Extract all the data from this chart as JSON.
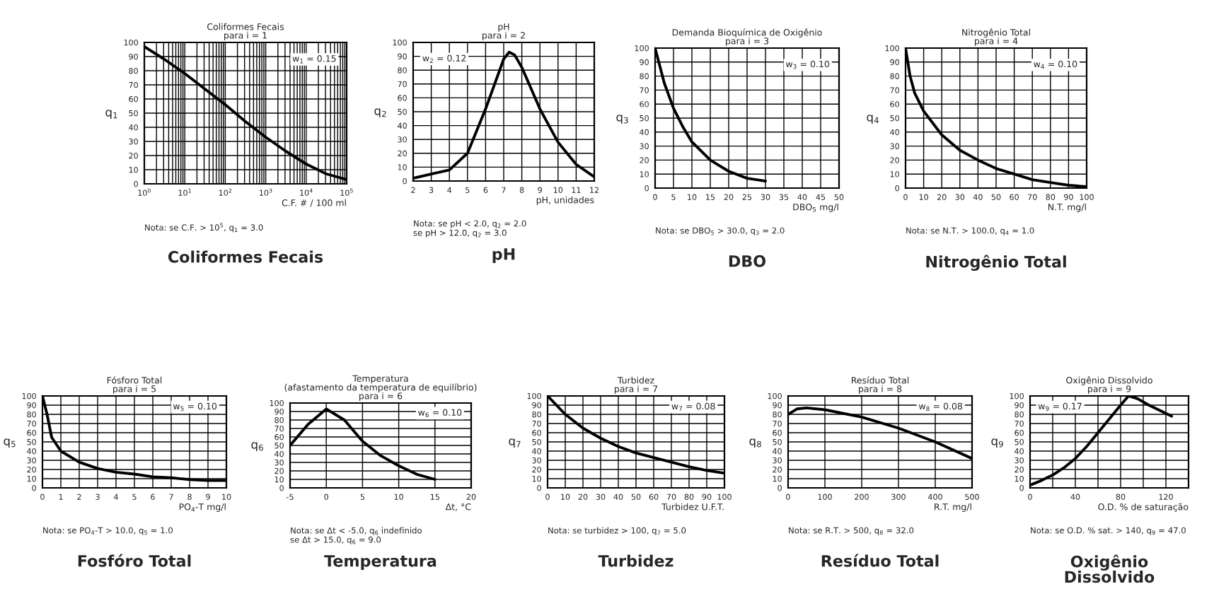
{
  "chart_data": [
    {
      "type": "line",
      "title": "Coliformes Fecais",
      "subtitle": "para i = 1",
      "xlabel": "C.F. # / 100 ml",
      "ylabel": "q$_{1}$",
      "log": "x",
      "xlim": [
        1,
        100000
      ],
      "xticks": [
        {
          "value": 1,
          "label": "10$^{0}$"
        },
        {
          "value": 10,
          "label": "10$^{1}$"
        },
        {
          "value": 100,
          "label": "10$^{2}$"
        },
        {
          "value": 1000,
          "label": "10$^{3}$"
        },
        {
          "value": 10000,
          "label": "10$^{4}$"
        },
        {
          "value": 100000,
          "label": "10$^{5}$"
        }
      ],
      "ylim": [
        0,
        100
      ],
      "yticks": [
        0,
        10,
        20,
        30,
        40,
        50,
        60,
        70,
        80,
        90,
        100
      ],
      "grid": true,
      "series": [
        {
          "color": "#000000",
          "x": [
            1,
            3.16,
            10,
            31.6,
            100,
            316,
            1000,
            3162,
            10000,
            31623,
            100000
          ],
          "values": [
            97,
            88,
            78,
            67,
            56,
            44,
            33,
            23,
            14,
            7,
            3
          ]
        }
      ],
      "annotations": [
        "w$_{1}$ = 0.15",
        "Nota: se C.F. > 10$^{5}$, q$_{1}$ = 3.0",
        "Coliformes Fecais"
      ]
    },
    {
      "type": "line",
      "title": "pH",
      "subtitle": "para i = 2",
      "xlabel": "pH, unidades",
      "ylabel": "q$_{2}$",
      "xlim": [
        2,
        12
      ],
      "xticks": [
        2,
        3,
        4,
        5,
        6,
        7,
        8,
        9,
        10,
        11,
        12
      ],
      "ylim": [
        0,
        100
      ],
      "yticks": [
        0,
        10,
        20,
        30,
        40,
        50,
        60,
        70,
        80,
        90,
        100
      ],
      "grid": true,
      "series": [
        {
          "color": "#000000",
          "x": [
            2,
            3,
            4,
            5,
            6,
            7,
            7.3,
            7.6,
            8,
            9,
            10,
            11,
            12
          ],
          "values": [
            2,
            5,
            8,
            20,
            52,
            88,
            93,
            91,
            82,
            52,
            28,
            12,
            3
          ]
        }
      ],
      "annotations": [
        "w$_{2}$ = 0.12",
        "Nota: se pH < 2.0, q$_{2}$ = 2.0\nse pH > 12.0, q$_{2}$ = 3.0",
        "pH"
      ]
    },
    {
      "type": "line",
      "title": "Demanda Bioquímica de Oxigênio",
      "subtitle": "para i = 3",
      "xlabel": "DBO$_{5}$ mg/l",
      "ylabel": "q$_{3}$",
      "xlim": [
        0,
        50
      ],
      "xticks": [
        0,
        5,
        10,
        15,
        20,
        25,
        30,
        35,
        40,
        45,
        50
      ],
      "ylim": [
        0,
        100
      ],
      "yticks": [
        0,
        10,
        20,
        30,
        40,
        50,
        60,
        70,
        80,
        90,
        100
      ],
      "grid": true,
      "series": [
        {
          "color": "#000000",
          "x": [
            0,
            2.5,
            5,
            7.5,
            10,
            15,
            20,
            25,
            30
          ],
          "values": [
            100,
            75,
            57,
            44,
            33,
            20,
            12,
            7,
            5
          ]
        }
      ],
      "annotations": [
        "w$_{3}$ = 0.10",
        "Nota: se DBO$_{5}$ > 30.0, q$_{3}$ = 2.0",
        "DBO"
      ]
    },
    {
      "type": "line",
      "title": "Nitrogênio Total",
      "subtitle": "para i = 4",
      "xlabel": "N.T. mg/l",
      "ylabel": "q$_{4}$",
      "xlim": [
        0,
        100
      ],
      "xticks": [
        0,
        10,
        20,
        30,
        40,
        50,
        60,
        70,
        80,
        90,
        100
      ],
      "ylim": [
        0,
        100
      ],
      "yticks": [
        0,
        10,
        20,
        30,
        40,
        50,
        60,
        70,
        80,
        90,
        100
      ],
      "grid": true,
      "series": [
        {
          "color": "#000000",
          "x": [
            0,
            2.5,
            5,
            10,
            20,
            30,
            40,
            50,
            60,
            70,
            80,
            90,
            100
          ],
          "values": [
            100,
            80,
            68,
            55,
            38,
            27,
            20,
            14,
            10,
            6,
            4,
            2,
            1
          ]
        }
      ],
      "annotations": [
        "w$_{4}$ = 0.10",
        "Nota: se N.T. > 100.0, q$_{4}$ = 1.0",
        "Nitrogênio Total"
      ]
    },
    {
      "type": "line",
      "title": "Fósforo Total",
      "subtitle": "para i = 5",
      "xlabel": "PO$_{4}$-T mg/l",
      "ylabel": "q$_{5}$",
      "xlim": [
        0,
        10
      ],
      "xticks": [
        0,
        1,
        2,
        3,
        4,
        5,
        6,
        7,
        8,
        9,
        10
      ],
      "ylim": [
        0,
        100
      ],
      "yticks": [
        0,
        10,
        20,
        30,
        40,
        50,
        60,
        70,
        80,
        90,
        100
      ],
      "grid": true,
      "series": [
        {
          "color": "#000000",
          "x": [
            0,
            0.25,
            0.5,
            1,
            2,
            3,
            4,
            5,
            6,
            7,
            8,
            9,
            10
          ],
          "values": [
            100,
            80,
            55,
            40,
            28,
            21,
            17,
            15,
            12,
            11,
            9,
            8,
            8
          ]
        }
      ],
      "annotations": [
        "w$_{5}$ = 0.10",
        "Nota: se PO$_{4}$-T > 10.0, q$_{5}$ = 1.0",
        "Fosfóro Total"
      ]
    },
    {
      "type": "line",
      "title": "Temperatura",
      "subtitle": "(afastamento da temperatura de equilíbrio)\npara i = 6",
      "xlabel": "Δt, °C",
      "ylabel": "q$_{6}$",
      "xlim": [
        -5,
        20
      ],
      "xticks": [
        -5,
        0,
        5,
        10,
        15,
        20
      ],
      "ylim": [
        0,
        100
      ],
      "yticks": [
        0,
        10,
        20,
        30,
        40,
        50,
        60,
        70,
        80,
        90,
        100
      ],
      "grid": true,
      "series": [
        {
          "color": "#000000",
          "x": [
            -5,
            -2.5,
            0,
            2.5,
            5,
            7.5,
            10,
            12.5,
            15
          ],
          "values": [
            50,
            75,
            93,
            80,
            55,
            38,
            26,
            16,
            10
          ]
        }
      ],
      "annotations": [
        "w$_{6}$ = 0.10",
        "Nota: se Δt < -5.0, q$_{6}$ indefinido\nse Δt > 15.0, q$_{6}$ = 9.0",
        "Temperatura"
      ]
    },
    {
      "type": "line",
      "title": "Turbidez",
      "subtitle": "para i = 7",
      "xlabel": "Turbidez U.F.T.",
      "ylabel": "q$_{7}$",
      "xlim": [
        0,
        100
      ],
      "xticks": [
        0,
        10,
        20,
        30,
        40,
        50,
        60,
        70,
        80,
        90,
        100
      ],
      "ylim": [
        0,
        100
      ],
      "yticks": [
        0,
        10,
        20,
        30,
        40,
        50,
        60,
        70,
        80,
        90,
        100
      ],
      "grid": true,
      "series": [
        {
          "color": "#000000",
          "x": [
            0,
            10,
            20,
            30,
            40,
            50,
            60,
            70,
            80,
            90,
            100
          ],
          "values": [
            100,
            80,
            65,
            54,
            45,
            38,
            33,
            28,
            23,
            19,
            16
          ]
        }
      ],
      "annotations": [
        "w$_{7}$ = 0.08",
        "Nota: se turbidez > 100, q$_{7}$ = 5.0",
        "Turbidez"
      ]
    },
    {
      "type": "line",
      "title": "Resíduo Total",
      "subtitle": "para i = 8",
      "xlabel": "R.T. mg/l",
      "ylabel": "q$_{8}$",
      "xlim": [
        0,
        500
      ],
      "xticks": [
        0,
        100,
        200,
        300,
        400,
        500
      ],
      "ylim": [
        0,
        100
      ],
      "yticks": [
        0,
        10,
        20,
        30,
        40,
        50,
        60,
        70,
        80,
        90,
        100
      ],
      "grid": true,
      "series": [
        {
          "color": "#000000",
          "x": [
            0,
            25,
            50,
            100,
            200,
            300,
            400,
            500
          ],
          "values": [
            80,
            86,
            87,
            85,
            77,
            65,
            50,
            32
          ]
        }
      ],
      "annotations": [
        "w$_{8}$ = 0.08",
        "Nota: se R.T. > 500, q$_{8}$ = 32.0",
        "Resíduo Total"
      ]
    },
    {
      "type": "line",
      "title": "Oxigênio Dissolvido",
      "subtitle": "para i = 9",
      "xlabel": "O.D. % de saturação",
      "ylabel": "q$_{9}$",
      "xlim": [
        0,
        140
      ],
      "xticks": [
        0,
        {
          "value": 20,
          "label": null
        },
        40,
        {
          "value": 60,
          "label": null
        },
        80,
        {
          "value": 100,
          "label": null
        },
        120,
        {
          "value": 140,
          "label": null
        }
      ],
      "ylim": [
        0,
        100
      ],
      "yticks": [
        0,
        10,
        20,
        30,
        40,
        50,
        60,
        70,
        80,
        90,
        100
      ],
      "grid": true,
      "series": [
        {
          "color": "#000000",
          "x": [
            0,
            10,
            20,
            30,
            40,
            50,
            60,
            70,
            80,
            87,
            95,
            105,
            115,
            125
          ],
          "values": [
            3,
            8,
            14,
            22,
            32,
            45,
            60,
            75,
            90,
            100,
            97,
            90,
            84,
            78
          ]
        }
      ],
      "annotations": [
        "w$_{9}$ = 0.17",
        "Nota: se O.D. % sat. > 140, q$_{9}$ = 47.0",
        "Oxigênio\nDissolvido"
      ]
    }
  ]
}
